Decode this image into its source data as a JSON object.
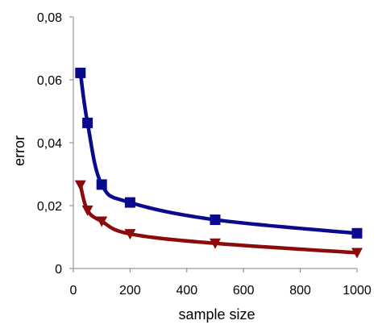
{
  "chart_data": {
    "type": "line",
    "title": "",
    "xlabel": "sample size",
    "ylabel": "error",
    "xlim": [
      0,
      1000
    ],
    "ylim": [
      0,
      0.08
    ],
    "xticks": [
      0,
      200,
      400,
      600,
      800,
      1000
    ],
    "yticks": [
      0,
      0.02,
      0.04,
      0.06,
      0.08
    ],
    "xtick_labels": [
      "0",
      "200",
      "400",
      "600",
      "800",
      "1000"
    ],
    "ytick_labels": [
      "0",
      "0,02",
      "0,04",
      "0,06",
      "0,08"
    ],
    "grid": false,
    "legend": "none",
    "smoothed": true,
    "series": [
      {
        "marker": "square",
        "color": "#0a0a8c",
        "x": [
          25,
          50,
          100,
          200,
          500,
          1000
        ],
        "y": [
          0.0622,
          0.0463,
          0.0267,
          0.021,
          0.0155,
          0.0112
        ]
      },
      {
        "marker": "triangle-down",
        "color": "#8b0a0a",
        "x": [
          25,
          50,
          100,
          200,
          500,
          1000
        ],
        "y": [
          0.0265,
          0.0185,
          0.015,
          0.011,
          0.008,
          0.005
        ]
      }
    ]
  }
}
